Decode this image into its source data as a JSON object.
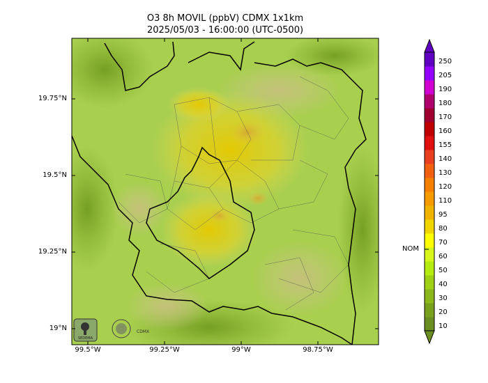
{
  "title": "O3 8h MOVIL (ppbV) CDMX 1x1km",
  "subtitle": "2025/05/03 - 16:00:00 (UTC-0500)",
  "y_ticks": [
    "19.75°N",
    "19.5°N",
    "19.25°N",
    "19°N"
  ],
  "x_ticks": [
    "99.5°W",
    "99.25°W",
    "99°W",
    "98.75°W"
  ],
  "colorbar": {
    "levels": [
      "10",
      "20",
      "30",
      "40",
      "50",
      "60",
      "70",
      "80",
      "95",
      "110",
      "120",
      "130",
      "140",
      "155",
      "160",
      "170",
      "180",
      "190",
      "205",
      "250"
    ],
    "colors": [
      "#6b8e23",
      "#78a21e",
      "#8ab81a",
      "#a0d013",
      "#b6ea10",
      "#d6f51a",
      "#ffff00",
      "#f0d500",
      "#f0b400",
      "#f59a00",
      "#f57f00",
      "#f06010",
      "#e84020",
      "#e01010",
      "#c00000",
      "#a00030",
      "#b00070",
      "#d000d0",
      "#9400ff",
      "#6000c0"
    ],
    "marker_label": "NOM"
  },
  "logos": [
    "SEDEMA",
    "CDMX"
  ]
}
